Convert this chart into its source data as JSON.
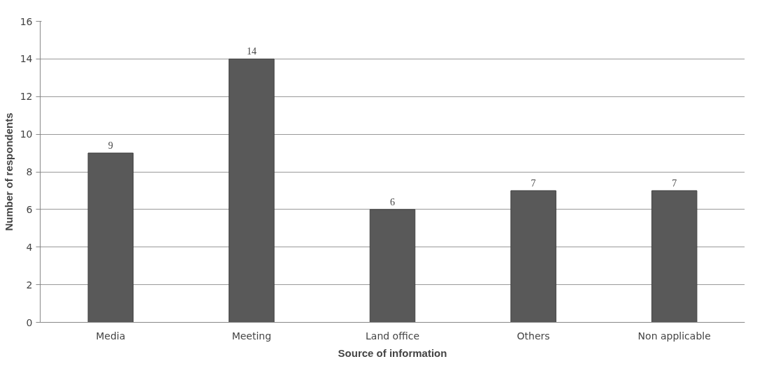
{
  "chart_data": {
    "type": "bar",
    "xlabel": "Source of information",
    "ylabel": "Number of respondents",
    "categories": [
      "Media",
      "Meeting",
      "Land office",
      "Others",
      "Non applicable"
    ],
    "values": [
      9,
      14,
      6,
      7,
      7
    ],
    "color": "#595959",
    "ylim": [
      0,
      16
    ],
    "yticks": [
      0,
      2,
      4,
      6,
      8,
      10,
      12,
      14,
      16
    ],
    "grid": "y",
    "data_labels": true
  }
}
